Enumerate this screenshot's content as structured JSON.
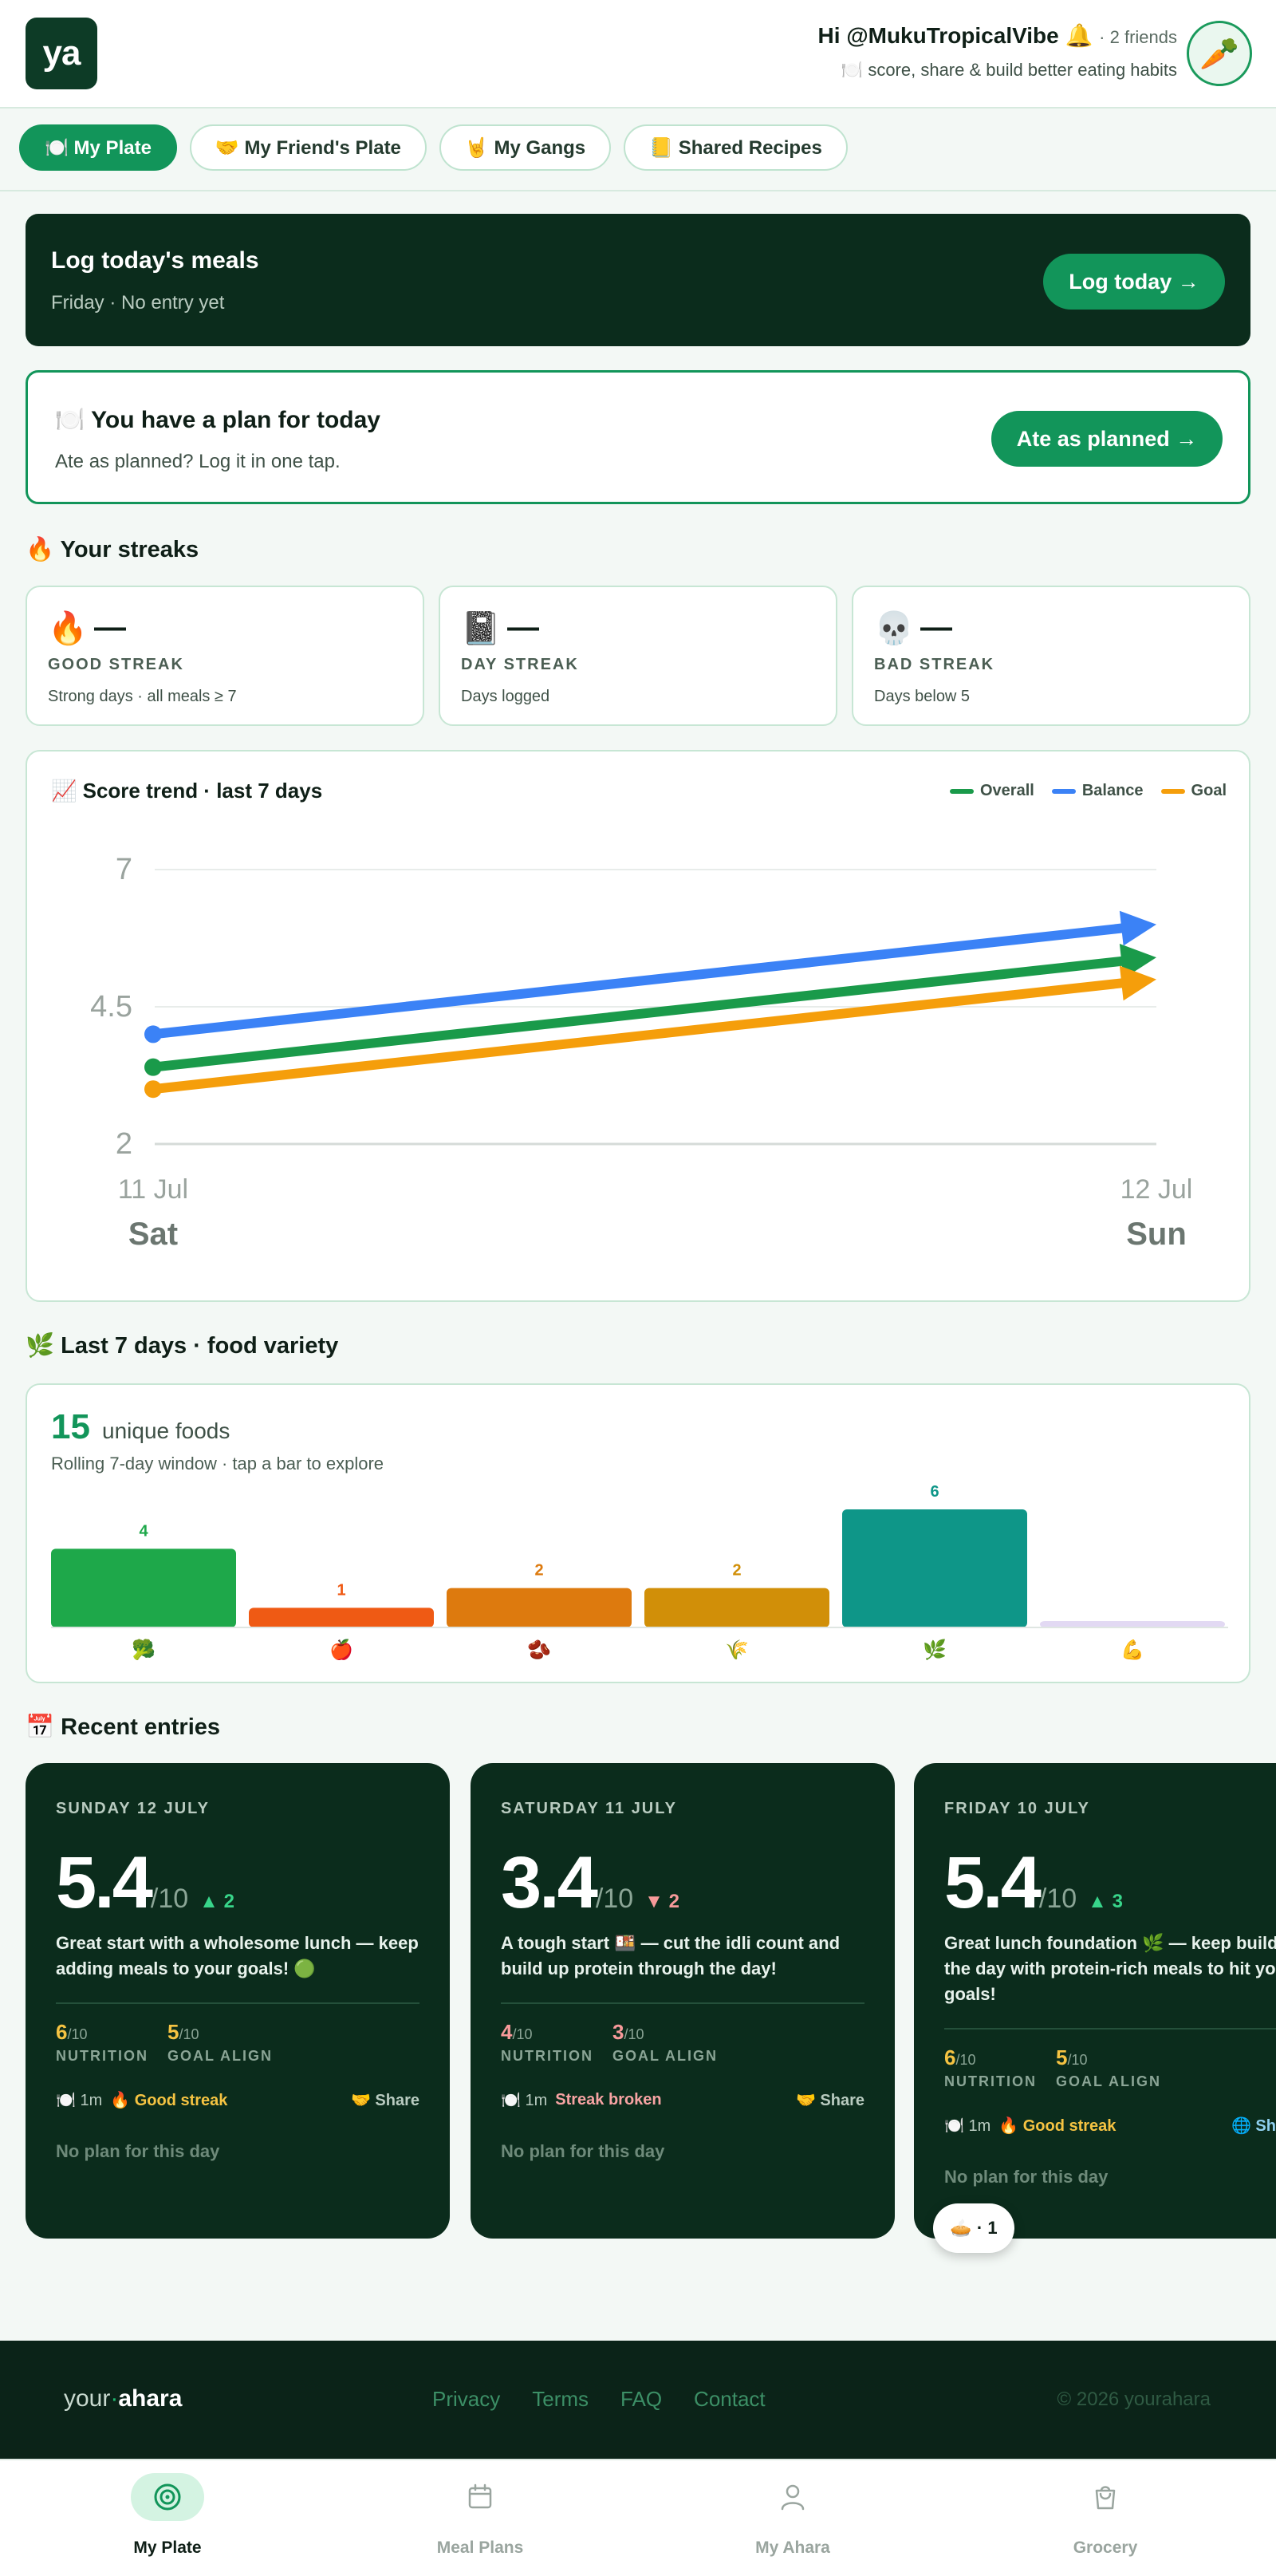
{
  "header": {
    "logo_text": "ya",
    "greeting": "Hi @MukuTropicalVibe",
    "bell": "🔔",
    "friends": "· 2 friends",
    "tagline": "🍽️ score, share & build better eating habits",
    "avatar_emoji": "🥕"
  },
  "tabs": [
    {
      "label": "🍽️ My Plate",
      "active": true
    },
    {
      "label": "🤝 My Friend's Plate",
      "active": false
    },
    {
      "label": "🤘 My Gangs",
      "active": false
    },
    {
      "label": "📒 Shared Recipes",
      "active": false
    }
  ],
  "log_card": {
    "title": "Log today's meals",
    "subtitle": "Friday · No entry yet",
    "button": "Log today →"
  },
  "plan_card": {
    "title": "🍽️ You have a plan for today",
    "subtitle": "Ate as planned? Log it in one tap.",
    "button": "Ate as planned →"
  },
  "streaks": {
    "title": "🔥 Your streaks",
    "items": [
      {
        "icon": "🔥",
        "value": "—",
        "label": "GOOD STREAK",
        "desc": "Strong days · all meals ≥ 7"
      },
      {
        "icon": "📓",
        "value": "—",
        "label": "DAY STREAK",
        "desc": "Days logged"
      },
      {
        "icon": "💀",
        "value": "—",
        "label": "BAD STREAK",
        "desc": "Days below 5"
      }
    ]
  },
  "trend": {
    "title": "📈 Score trend · last 7 days",
    "legend": [
      {
        "name": "Overall",
        "color": "#1a9a4a"
      },
      {
        "name": "Balance",
        "color": "#3b82f6"
      },
      {
        "name": "Goal",
        "color": "#f59e0b"
      }
    ]
  },
  "chart_data": {
    "type": "line",
    "x": [
      "11 Jul",
      "12 Jul"
    ],
    "x_days": [
      "Sat",
      "Sun"
    ],
    "ylim": [
      2,
      7
    ],
    "yticks": [
      2,
      4.5,
      7
    ],
    "grid": true,
    "legend_position": "top-right",
    "series": [
      {
        "name": "Overall",
        "color": "#1a9a4a",
        "values": [
          3.4,
          5.4
        ]
      },
      {
        "name": "Balance",
        "color": "#3b82f6",
        "values": [
          4.0,
          6.0
        ]
      },
      {
        "name": "Goal",
        "color": "#f59e0b",
        "values": [
          3.0,
          5.0
        ]
      }
    ]
  },
  "variety": {
    "section_title": "🌿 Last 7 days · food variety",
    "count": "15",
    "unit": "unique foods",
    "subtitle": "Rolling 7-day window · tap a bar to explore",
    "bars": [
      {
        "icon": "🥦",
        "value": 4,
        "color": "#1ea84a",
        "label_color": "#1ea84a"
      },
      {
        "icon": "🍎",
        "value": 1,
        "color": "#ef5a14",
        "label_color": "#ef5a14"
      },
      {
        "icon": "🫘",
        "value": 2,
        "color": "#dd7a0e",
        "label_color": "#dd7a0e"
      },
      {
        "icon": "🌾",
        "value": 2,
        "color": "#d18f08",
        "label_color": "#d18f08"
      },
      {
        "icon": "🌿",
        "value": 6,
        "color": "#0e9688",
        "label_color": "#0e9688"
      },
      {
        "icon": "💪",
        "value": 0,
        "color": "#e2d9f3",
        "label_color": "#b7a6e0"
      }
    ]
  },
  "entries": {
    "section_title": "📅 Recent entries",
    "items": [
      {
        "date": "SUNDAY 12 JULY",
        "score": "5.4",
        "of": "/10",
        "delta": "▲ 2",
        "delta_dir": "up",
        "message": "Great start with a wholesome lunch — keep adding meals to your goals! 🟢",
        "nutrition": "6",
        "goal_align": "5",
        "den": "/10",
        "nutrition_label": "NUTRITION",
        "goal_label": "GOAL ALIGN",
        "time": "🍽️ 1m",
        "streak": "🔥 Good streak",
        "streak_type": "good",
        "share": "🤝 Share",
        "no_plan": "No plan for this day"
      },
      {
        "date": "SATURDAY 11 JULY",
        "score": "3.4",
        "of": "/10",
        "delta": "▼ 2",
        "delta_dir": "down",
        "message": "A tough start 🍱 — cut the idli count and build up protein through the day!",
        "nutrition": "4",
        "goal_align": "3",
        "den": "/10",
        "nutrition_label": "NUTRITION",
        "goal_label": "GOAL ALIGN",
        "time": "🍽️ 1m",
        "streak": "Streak broken",
        "streak_type": "bad",
        "share": "🤝 Share",
        "no_plan": "No plan for this day"
      },
      {
        "date": "FRIDAY 10 JULY",
        "score": "5.4",
        "of": "/10",
        "delta": "▲ 3",
        "delta_dir": "up",
        "message": "Great lunch foundation 🌿 — keep building the day with protein-rich meals to hit your goals!",
        "nutrition": "6",
        "goal_align": "5",
        "den": "/10",
        "nutrition_label": "NUTRITION",
        "goal_label": "GOAL ALIGN",
        "time": "🍽️ 1m",
        "streak": "🔥 Good streak",
        "streak_type": "good",
        "share": "🌐 Share",
        "no_plan": "No plan for this day"
      }
    ],
    "float_pill": "🥧 · 1"
  },
  "footer": {
    "logo_your": "your",
    "logo_dot": "·",
    "logo_ahara": "ahara",
    "links": [
      "Privacy",
      "Terms",
      "FAQ",
      "Contact"
    ],
    "copyright": "© 2026 yourahara"
  },
  "bottom_nav": [
    {
      "label": "My Plate",
      "icon": "target-icon",
      "active": true
    },
    {
      "label": "Meal Plans",
      "icon": "calendar-icon",
      "active": false
    },
    {
      "label": "My Ahara",
      "icon": "user-icon",
      "active": false
    },
    {
      "label": "Grocery",
      "icon": "shopping-bag-icon",
      "active": false
    }
  ]
}
